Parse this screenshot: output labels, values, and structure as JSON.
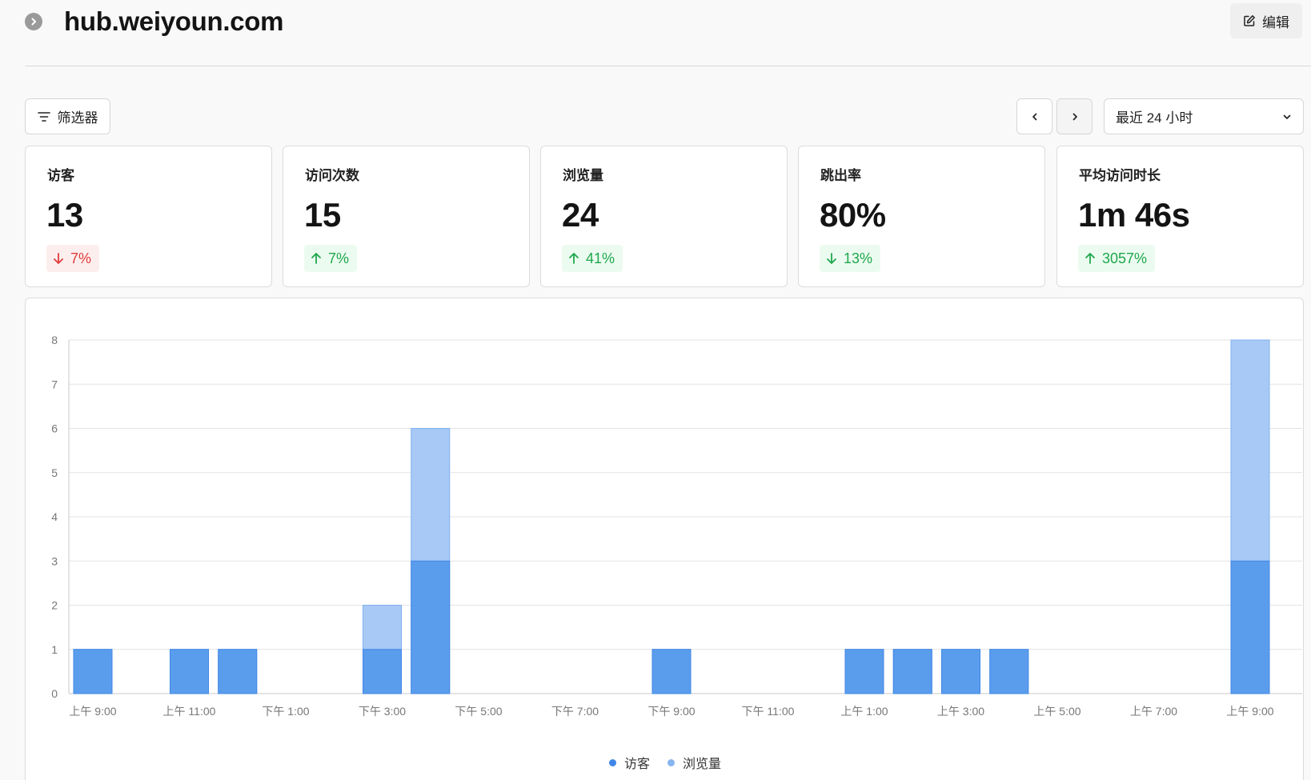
{
  "header": {
    "title": "hub.weiyoun.com",
    "edit_label": "编辑"
  },
  "toolbar": {
    "filter_label": "筛选器",
    "range_label": "最近 24 小时"
  },
  "metrics": [
    {
      "label": "访客",
      "value": "13",
      "change": "7%",
      "direction": "down"
    },
    {
      "label": "访问次数",
      "value": "15",
      "change": "7%",
      "direction": "up"
    },
    {
      "label": "浏览量",
      "value": "24",
      "change": "41%",
      "direction": "up"
    },
    {
      "label": "跳出率",
      "value": "80%",
      "change": "13%",
      "direction": "down"
    },
    {
      "label": "平均访问时长",
      "value": "1m 46s",
      "change": "3057%",
      "direction": "up"
    }
  ],
  "colors": {
    "visitors": "#5b9ded",
    "pageviews": "#a8c9f5",
    "up": "#1ea84d",
    "down": "#e23b3b"
  },
  "chart_data": {
    "type": "bar",
    "stacked": false,
    "ylim": [
      0,
      8
    ],
    "yticks": [
      0,
      1,
      2,
      3,
      4,
      5,
      6,
      7,
      8
    ],
    "grid": true,
    "legend_position": "bottom",
    "x_tick_labels": [
      "上午 9:00",
      "上午 11:00",
      "下午 1:00",
      "下午 3:00",
      "下午 5:00",
      "下午 7:00",
      "下午 9:00",
      "下午 11:00",
      "上午 1:00",
      "上午 3:00",
      "上午 5:00",
      "上午 7:00",
      "上午 9:00"
    ],
    "hours": [
      "9",
      "10",
      "11",
      "12",
      "13",
      "14",
      "15",
      "16",
      "17",
      "18",
      "19",
      "20",
      "21",
      "22",
      "23",
      "0",
      "1",
      "2",
      "3",
      "4",
      "5",
      "6",
      "7",
      "8",
      "9"
    ],
    "series": [
      {
        "name": "访客",
        "color": "#5b9ded",
        "values": [
          1,
          0,
          1,
          1,
          0,
          0,
          1,
          3,
          0,
          0,
          0,
          0,
          1,
          0,
          0,
          0,
          1,
          1,
          1,
          1,
          0,
          0,
          0,
          0,
          3
        ]
      },
      {
        "name": "浏览量",
        "color": "#a8c9f5",
        "values": [
          1,
          0,
          1,
          1,
          0,
          0,
          2,
          6,
          0,
          0,
          0,
          0,
          1,
          0,
          0,
          0,
          1,
          1,
          1,
          1,
          0,
          0,
          0,
          0,
          8
        ]
      }
    ]
  }
}
